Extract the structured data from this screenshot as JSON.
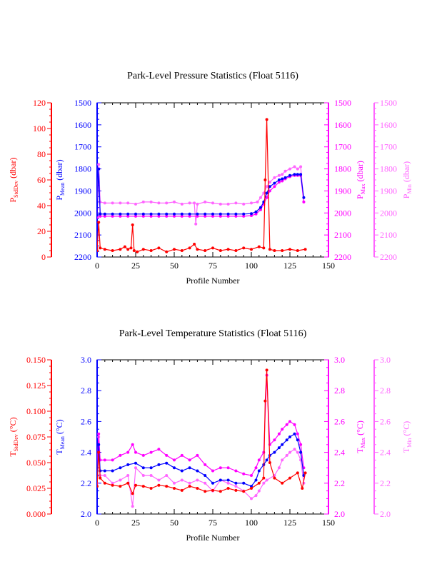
{
  "colors": {
    "stddev": "#ff0000",
    "mean": "#0000ff",
    "max": "#ff00ff",
    "min": "#ff66ff",
    "frame": "#000000"
  },
  "chart_data": [
    {
      "type": "line",
      "title": "Park-Level Pressure Statistics (Float 5116)",
      "xlabel": "Profile Number",
      "xlim": [
        0,
        150
      ],
      "xticks": [
        "0",
        "25",
        "50",
        "75",
        "100",
        "125",
        "150"
      ],
      "axes": [
        {
          "key": "stddev",
          "label_main": "P",
          "label_sub": "StdDev",
          "label_unit": " (dbar)",
          "lim": [
            0,
            120
          ],
          "reversed": false,
          "ticks": [
            "0",
            "20",
            "40",
            "60",
            "80",
            "100",
            "120"
          ]
        },
        {
          "key": "mean",
          "label_main": "P",
          "label_sub": "Mean",
          "label_unit": " (dbar)",
          "lim": [
            2200,
            1500
          ],
          "reversed": true,
          "ticks": [
            "2200",
            "2100",
            "2000",
            "1900",
            "1800",
            "1700",
            "1600",
            "1500"
          ]
        },
        {
          "key": "max",
          "label_main": "P",
          "label_sub": "Max",
          "label_unit": " (dbar)",
          "lim": [
            2200,
            1500
          ],
          "reversed": true,
          "ticks": [
            "2200",
            "2100",
            "2000",
            "1900",
            "1800",
            "1700",
            "1600",
            "1500"
          ]
        },
        {
          "key": "min",
          "label_main": "P",
          "label_sub": "Min",
          "label_unit": " (dbar)",
          "lim": [
            2200,
            1500
          ],
          "reversed": true,
          "ticks": [
            "2200",
            "2100",
            "2000",
            "1900",
            "1800",
            "1700",
            "1600",
            "1500"
          ]
        }
      ],
      "series": [
        {
          "key": "min",
          "axis": 3,
          "x": [
            0,
            1,
            2,
            5,
            10,
            15,
            20,
            25,
            30,
            35,
            40,
            45,
            50,
            55,
            60,
            63,
            64,
            65,
            70,
            75,
            80,
            85,
            90,
            95,
            100,
            104,
            106,
            108,
            110,
            112,
            115,
            118,
            120,
            122,
            125,
            128,
            130,
            132,
            134
          ],
          "y": [
            1980,
            1780,
            1950,
            1955,
            1955,
            1955,
            1955,
            1960,
            1950,
            1950,
            1955,
            1955,
            1950,
            1960,
            1955,
            1955,
            2050,
            1960,
            1950,
            1955,
            1960,
            1960,
            1955,
            1960,
            1955,
            1950,
            1930,
            1910,
            1880,
            1860,
            1840,
            1830,
            1825,
            1810,
            1800,
            1790,
            1800,
            1790,
            1950
          ]
        },
        {
          "key": "max",
          "axis": 2,
          "x": [
            0,
            1,
            2,
            5,
            10,
            15,
            20,
            25,
            30,
            35,
            40,
            45,
            50,
            55,
            60,
            65,
            70,
            75,
            80,
            85,
            90,
            95,
            100,
            103,
            106,
            108,
            110,
            112,
            115,
            118,
            120,
            122,
            125,
            128,
            130,
            132,
            134
          ],
          "y": [
            2020,
            1800,
            2015,
            2015,
            2015,
            2015,
            2015,
            2015,
            2015,
            2015,
            2015,
            2015,
            2015,
            2015,
            2015,
            2015,
            2015,
            2015,
            2015,
            2015,
            2015,
            2015,
            2012,
            2005,
            1985,
            1960,
            1930,
            1900,
            1880,
            1860,
            1855,
            1845,
            1835,
            1830,
            1830,
            1830,
            1950
          ]
        },
        {
          "key": "mean",
          "axis": 1,
          "x": [
            0,
            1,
            2,
            5,
            10,
            15,
            20,
            25,
            30,
            35,
            40,
            45,
            50,
            55,
            60,
            65,
            70,
            75,
            80,
            85,
            90,
            95,
            100,
            103,
            106,
            108,
            110,
            112,
            115,
            118,
            120,
            122,
            125,
            128,
            130,
            132,
            134
          ],
          "y": [
            2010,
            1800,
            2005,
            2005,
            2005,
            2005,
            2005,
            2005,
            2005,
            2005,
            2005,
            2005,
            2005,
            2005,
            2005,
            2005,
            2005,
            2005,
            2005,
            2005,
            2005,
            2005,
            2003,
            1995,
            1975,
            1950,
            1910,
            1880,
            1865,
            1850,
            1845,
            1840,
            1830,
            1825,
            1825,
            1825,
            1930
          ]
        },
        {
          "key": "stddev",
          "axis": 0,
          "x": [
            0,
            1,
            2,
            5,
            10,
            15,
            18,
            20,
            22,
            23,
            24,
            26,
            30,
            35,
            40,
            45,
            50,
            55,
            60,
            63,
            65,
            70,
            75,
            80,
            85,
            90,
            95,
            100,
            105,
            108,
            109,
            110,
            112,
            115,
            120,
            125,
            130,
            135
          ],
          "y": [
            5,
            27,
            7,
            6,
            5,
            6,
            8,
            6,
            7,
            25,
            5,
            4,
            6,
            5,
            7,
            4,
            6,
            5,
            7,
            10,
            6,
            5,
            7,
            5,
            6,
            5,
            7,
            6,
            8,
            7,
            60,
            107,
            6,
            5,
            5,
            6,
            5,
            6
          ]
        }
      ]
    },
    {
      "type": "line",
      "title": "Park-Level Temperature Statistics (Float 5116)",
      "xlabel": "Profile Number",
      "xlim": [
        0,
        150
      ],
      "xticks": [
        "0",
        "25",
        "50",
        "75",
        "100",
        "125",
        "150"
      ],
      "axes": [
        {
          "key": "stddev",
          "label_main": "T",
          "label_sub": "StdDev",
          "label_unit": " (°C)",
          "lim": [
            0,
            0.15
          ],
          "reversed": false,
          "ticks": [
            "0.000",
            "0.025",
            "0.050",
            "0.075",
            "0.100",
            "0.125",
            "0.150"
          ]
        },
        {
          "key": "mean",
          "label_main": "T",
          "label_sub": "Mean",
          "label_unit": " (°C)",
          "lim": [
            2.0,
            3.0
          ],
          "reversed": false,
          "ticks": [
            "2.0",
            "2.2",
            "2.4",
            "2.6",
            "2.8",
            "3.0"
          ]
        },
        {
          "key": "max",
          "label_main": "T",
          "label_sub": "Max",
          "label_unit": " (°C)",
          "lim": [
            2.0,
            3.0
          ],
          "reversed": false,
          "ticks": [
            "2.0",
            "2.2",
            "2.4",
            "2.6",
            "2.8",
            "3.0"
          ]
        },
        {
          "key": "min",
          "label_main": "T",
          "label_sub": "Min",
          "label_unit": " (°C)",
          "lim": [
            2.0,
            3.0
          ],
          "reversed": false,
          "ticks": [
            "2.0",
            "2.2",
            "2.4",
            "2.6",
            "2.8",
            "3.0"
          ]
        }
      ],
      "series": [
        {
          "key": "min",
          "axis": 3,
          "x": [
            0,
            1,
            2,
            5,
            10,
            15,
            20,
            23,
            25,
            30,
            35,
            40,
            45,
            50,
            55,
            60,
            65,
            70,
            75,
            80,
            85,
            90,
            95,
            100,
            103,
            105,
            108,
            110,
            115,
            118,
            120,
            123,
            125,
            128,
            130,
            132,
            134
          ],
          "y": [
            2.2,
            2.5,
            2.25,
            2.25,
            2.2,
            2.22,
            2.25,
            2.05,
            2.3,
            2.25,
            2.25,
            2.22,
            2.25,
            2.2,
            2.22,
            2.2,
            2.22,
            2.2,
            2.15,
            2.22,
            2.2,
            2.18,
            2.15,
            2.1,
            2.12,
            2.15,
            2.2,
            2.22,
            2.25,
            2.3,
            2.35,
            2.38,
            2.4,
            2.42,
            2.4,
            2.35,
            2.2
          ]
        },
        {
          "key": "max",
          "axis": 2,
          "x": [
            0,
            1,
            2,
            5,
            10,
            15,
            20,
            23,
            25,
            30,
            35,
            40,
            45,
            50,
            55,
            60,
            65,
            70,
            75,
            80,
            85,
            90,
            95,
            100,
            103,
            105,
            108,
            110,
            112,
            115,
            118,
            120,
            123,
            125,
            128,
            130,
            132,
            134
          ],
          "y": [
            2.3,
            2.52,
            2.35,
            2.35,
            2.35,
            2.38,
            2.4,
            2.45,
            2.4,
            2.38,
            2.4,
            2.42,
            2.38,
            2.35,
            2.38,
            2.35,
            2.38,
            2.32,
            2.28,
            2.3,
            2.3,
            2.28,
            2.26,
            2.25,
            2.3,
            2.35,
            2.4,
            2.9,
            2.45,
            2.48,
            2.52,
            2.55,
            2.58,
            2.6,
            2.58,
            2.52,
            2.45,
            2.3
          ]
        },
        {
          "key": "mean",
          "axis": 1,
          "x": [
            0,
            1,
            2,
            5,
            10,
            15,
            20,
            25,
            30,
            35,
            40,
            45,
            50,
            55,
            60,
            65,
            70,
            75,
            80,
            85,
            90,
            95,
            100,
            103,
            105,
            108,
            110,
            112,
            115,
            118,
            120,
            123,
            125,
            128,
            130,
            132,
            134
          ],
          "y": [
            2.25,
            2.45,
            2.28,
            2.28,
            2.28,
            2.3,
            2.32,
            2.33,
            2.3,
            2.3,
            2.32,
            2.33,
            2.3,
            2.28,
            2.3,
            2.28,
            2.25,
            2.2,
            2.22,
            2.22,
            2.2,
            2.2,
            2.18,
            2.22,
            2.28,
            2.32,
            2.35,
            2.38,
            2.4,
            2.43,
            2.45,
            2.48,
            2.5,
            2.52,
            2.48,
            2.4,
            2.25
          ]
        },
        {
          "key": "stddev",
          "axis": 0,
          "x": [
            0,
            1,
            2,
            5,
            10,
            15,
            20,
            23,
            25,
            30,
            35,
            40,
            45,
            50,
            55,
            60,
            65,
            70,
            75,
            80,
            85,
            90,
            95,
            100,
            105,
            108,
            109,
            110,
            112,
            115,
            120,
            125,
            130,
            133,
            135
          ],
          "y": [
            0.027,
            0.06,
            0.035,
            0.03,
            0.028,
            0.027,
            0.03,
            0.02,
            0.028,
            0.027,
            0.025,
            0.028,
            0.027,
            0.025,
            0.023,
            0.027,
            0.025,
            0.022,
            0.023,
            0.022,
            0.025,
            0.023,
            0.022,
            0.025,
            0.03,
            0.035,
            0.11,
            0.14,
            0.05,
            0.035,
            0.03,
            0.035,
            0.04,
            0.025,
            0.04
          ]
        }
      ]
    }
  ]
}
